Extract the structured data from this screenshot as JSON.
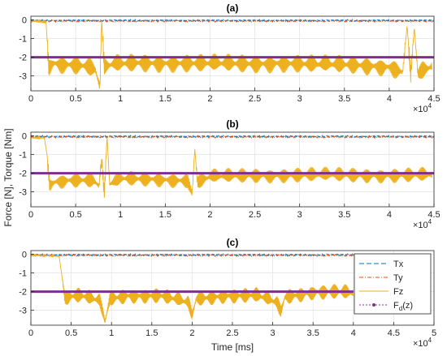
{
  "chart_data": {
    "type": "line",
    "shared_ylabel": "Force [N], Torque [Nm]",
    "colors": {
      "Tx": "#0072BD",
      "Ty": "#D95319",
      "Fz": "#EDB120",
      "Fd": "#7E2F8E"
    },
    "legend": {
      "placement": "inside-right of panel (c)",
      "entries": [
        {
          "key": "Tx",
          "label": "Tx"
        },
        {
          "key": "Ty",
          "label": "Ty"
        },
        {
          "key": "Fz",
          "label": "Fz"
        },
        {
          "key": "Fd",
          "label": "F",
          "sub": "d",
          "suffix": "(z)"
        }
      ]
    },
    "panels": [
      {
        "title": "(a)",
        "xlim": [
          0,
          45000
        ],
        "ylim": [
          -3.8,
          0.2
        ],
        "grid": true,
        "xticks": [
          0,
          5000,
          10000,
          15000,
          20000,
          25000,
          30000,
          35000,
          40000,
          45000
        ],
        "xtick_labels": [
          "0",
          "0.5",
          "1",
          "1.5",
          "2",
          "2.5",
          "3",
          "3.5",
          "4",
          "4.5"
        ],
        "yticks": [
          0,
          -1,
          -2,
          -3
        ],
        "ytick_labels": [
          "0",
          "-1",
          "-2",
          "-3"
        ],
        "x_exponent": "4",
        "xlabel": "",
        "Tx_level": -0.03,
        "Ty_level": -0.06,
        "Fd_level": -2.0,
        "Fz_trace": [
          [
            0,
            -0.15
          ],
          [
            300,
            -0.05
          ],
          [
            1200,
            -0.08
          ],
          [
            1500,
            -0.1
          ],
          [
            1700,
            -0.1
          ],
          [
            1800,
            -1.0
          ],
          [
            2000,
            -2.5
          ],
          [
            2500,
            -2.3
          ],
          [
            3500,
            -2.35
          ],
          [
            5000,
            -2.4
          ],
          [
            6500,
            -2.5
          ],
          [
            7200,
            -2.7
          ],
          [
            7700,
            -3.6
          ],
          [
            7900,
            0.0
          ],
          [
            8200,
            -2.6
          ],
          [
            9000,
            -2.4
          ],
          [
            12000,
            -2.3
          ],
          [
            16000,
            -2.3
          ],
          [
            20000,
            -2.35
          ],
          [
            24000,
            -2.35
          ],
          [
            28000,
            -2.3
          ],
          [
            32000,
            -2.4
          ],
          [
            36000,
            -2.4
          ],
          [
            40000,
            -2.5
          ],
          [
            41500,
            -2.8
          ],
          [
            42000,
            -0.3
          ],
          [
            42400,
            -3.0
          ],
          [
            42800,
            -0.4
          ],
          [
            43200,
            -2.9
          ],
          [
            44000,
            -2.7
          ],
          [
            44800,
            -2.5
          ]
        ],
        "Fz_amplitude": 0.55
      },
      {
        "title": "(b)",
        "xlim": [
          0,
          45000
        ],
        "ylim": [
          -3.8,
          0.2
        ],
        "grid": true,
        "xticks": [
          0,
          5000,
          10000,
          15000,
          20000,
          25000,
          30000,
          35000,
          40000,
          45000
        ],
        "xtick_labels": [
          "0",
          "0.5",
          "1",
          "1.5",
          "2",
          "2.5",
          "3",
          "3.5",
          "4",
          "4.5"
        ],
        "yticks": [
          0,
          -1,
          -2,
          -3
        ],
        "ytick_labels": [
          "0",
          "-1",
          "-2",
          "-3"
        ],
        "x_exponent": "4",
        "xlabel": "",
        "Tx_level": -0.03,
        "Ty_level": -0.06,
        "Fd_level": -2.0,
        "Fz_trace": [
          [
            0,
            -0.1
          ],
          [
            1500,
            -0.1
          ],
          [
            1800,
            -1.0
          ],
          [
            2100,
            -2.6
          ],
          [
            3000,
            -2.4
          ],
          [
            5000,
            -2.35
          ],
          [
            7000,
            -2.4
          ],
          [
            7600,
            -2.7
          ],
          [
            7900,
            -1.2
          ],
          [
            8200,
            -3.2
          ],
          [
            8500,
            0.0
          ],
          [
            8800,
            -2.6
          ],
          [
            10000,
            -2.3
          ],
          [
            14000,
            -2.3
          ],
          [
            17500,
            -2.4
          ],
          [
            18000,
            -3.1
          ],
          [
            18300,
            -0.7
          ],
          [
            18600,
            -2.5
          ],
          [
            20000,
            -2.2
          ],
          [
            25000,
            -2.1
          ],
          [
            30000,
            -2.1
          ],
          [
            35000,
            -2.1
          ],
          [
            40000,
            -2.1
          ],
          [
            44800,
            -2.1
          ]
        ],
        "Fz_amplitude": 0.45
      },
      {
        "title": "(c)",
        "xlim": [
          0,
          50000
        ],
        "ylim": [
          -3.8,
          0.2
        ],
        "grid": true,
        "xticks": [
          0,
          5000,
          10000,
          15000,
          20000,
          25000,
          30000,
          35000,
          40000,
          45000,
          50000
        ],
        "xtick_labels": [
          "0",
          "0.5",
          "1",
          "1.5",
          "2",
          "2.5",
          "3",
          "3.5",
          "4",
          "4.5",
          "5"
        ],
        "yticks": [
          0,
          -1,
          -2,
          -3
        ],
        "ytick_labels": [
          "0",
          "-1",
          "-2",
          "-3"
        ],
        "x_exponent": "4",
        "xlabel": "Time [ms]",
        "Tx_level": -0.03,
        "Ty_level": -0.06,
        "Fd_level": -2.0,
        "Fz_trace": [
          [
            0,
            -0.05
          ],
          [
            3500,
            -0.1
          ],
          [
            3800,
            -1.0
          ],
          [
            4200,
            -2.3
          ],
          [
            6000,
            -2.2
          ],
          [
            8500,
            -2.5
          ],
          [
            9200,
            -3.6
          ],
          [
            9800,
            -2.4
          ],
          [
            12000,
            -2.2
          ],
          [
            16000,
            -2.2
          ],
          [
            19500,
            -2.6
          ],
          [
            20000,
            -3.3
          ],
          [
            20500,
            -2.4
          ],
          [
            24000,
            -2.2
          ],
          [
            28000,
            -2.2
          ],
          [
            30500,
            -2.6
          ],
          [
            31000,
            -3.1
          ],
          [
            31500,
            -2.3
          ],
          [
            35000,
            -2.0
          ],
          [
            38000,
            -2.0
          ],
          [
            40000,
            -2.1
          ]
        ],
        "Fz_amplitude": 0.45
      }
    ]
  }
}
